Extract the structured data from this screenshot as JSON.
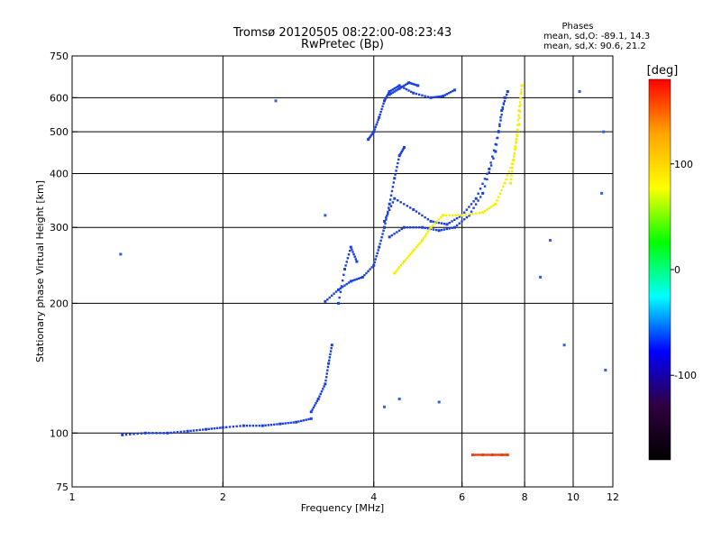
{
  "chart_data": {
    "type": "scatter",
    "title": "Tromsø 20120505 08:22:00-08:23:43",
    "subtitle": "RwPretec (Bp)",
    "phases_title": "Phases",
    "phases_line1": "mean, sd,O: -89.1, 14.3",
    "phases_line2": "mean, sd,X:  90.6, 21.2",
    "xlabel": "Frequency [MHz]",
    "ylabel": "Stationary phase Virtual Height [km]",
    "xscale": "log",
    "yscale": "log",
    "xlim": [
      1,
      12
    ],
    "ylim": [
      75,
      750
    ],
    "xticks": [
      1,
      2,
      4,
      6,
      8,
      10,
      12
    ],
    "yticks": [
      75,
      100,
      200,
      300,
      400,
      500,
      600,
      750
    ],
    "x_gridlines": [
      2,
      4,
      6,
      8,
      10
    ],
    "y_gridlines": [
      100,
      200,
      300,
      400,
      500,
      600
    ],
    "colorbar": {
      "label": "[deg]",
      "range": [
        -180,
        180
      ],
      "ticks": [
        100,
        0,
        -100
      ],
      "colors": [
        "#ff0000",
        "#ffa500",
        "#ffff00",
        "#00ff00",
        "#00ffff",
        "#0000ff",
        "#300040",
        "#000000"
      ]
    },
    "series": [
      {
        "role": "o-mode traces (phase ~ -90 deg)",
        "color": "#1a3fe0",
        "traces": [
          {
            "x": [
              1.26,
              1.4,
              1.55,
              1.7,
              1.85,
              2.0,
              2.2,
              2.4,
              2.6,
              2.8,
              3.0
            ],
            "y": [
              99,
              100,
              100,
              101,
              102,
              103,
              104,
              104,
              105,
              106,
              108
            ]
          },
          {
            "x": [
              3.0,
              3.1,
              3.2,
              3.25,
              3.3
            ],
            "y": [
              112,
              120,
              130,
              145,
              160
            ]
          },
          {
            "x": [
              3.2,
              3.4,
              3.6,
              3.8,
              4.0,
              4.1,
              4.2
            ],
            "y": [
              202,
              215,
              225,
              230,
              245,
              270,
              300
            ]
          },
          {
            "x": [
              3.4,
              3.5,
              3.6,
              3.7
            ],
            "y": [
              200,
              240,
              270,
              250
            ]
          },
          {
            "x": [
              4.2,
              4.3,
              4.4,
              4.5,
              4.6
            ],
            "y": [
              300,
              340,
              390,
              440,
              460
            ]
          },
          {
            "x": [
              4.3,
              4.6,
              5.0,
              5.4,
              5.8,
              6.2,
              6.6,
              7.0,
              7.2,
              7.4
            ],
            "y": [
              285,
              300,
              300,
              295,
              300,
              320,
              360,
              450,
              560,
              620
            ]
          },
          {
            "x": [
              4.2,
              4.4,
              4.8,
              5.2,
              5.6,
              6.0,
              6.4,
              6.8,
              7.1,
              7.3
            ],
            "y": [
              310,
              350,
              330,
              310,
              305,
              320,
              350,
              410,
              500,
              600
            ]
          },
          {
            "x": [
              3.9,
              4.0,
              4.1,
              4.2,
              4.3,
              4.5,
              4.8,
              5.2,
              5.5,
              5.8
            ],
            "y": [
              480,
              500,
              540,
              590,
              620,
              640,
              615,
              600,
              605,
              625
            ]
          },
          {
            "x": [
              4.3,
              4.5,
              4.7,
              4.9
            ],
            "y": [
              610,
              630,
              650,
              640
            ]
          }
        ]
      },
      {
        "role": "x-mode traces (phase ~ +90 deg)",
        "color": "#f2f000",
        "traces": [
          {
            "x": [
              4.4,
              4.6,
              4.8,
              5.0,
              5.2,
              5.5,
              6.0,
              6.6,
              7.0,
              7.3,
              7.6,
              7.8,
              7.9
            ],
            "y": [
              235,
              250,
              265,
              280,
              300,
              320,
              320,
              325,
              340,
              380,
              430,
              520,
              640
            ]
          },
          {
            "x": [
              7.5,
              7.6,
              7.7,
              7.8,
              7.9
            ],
            "y": [
              380,
              430,
              480,
              560,
              640
            ]
          }
        ]
      },
      {
        "role": "low-frequency echoes near 90 km (phase ~ +150 deg)",
        "color": "#f04010",
        "traces": [
          {
            "x": [
              6.3,
              6.6,
              6.9,
              7.2,
              7.4
            ],
            "y": [
              89,
              89,
              89,
              89,
              89
            ]
          }
        ]
      },
      {
        "role": "scattered points",
        "color": "#3060e0",
        "traces": [
          {
            "x": [
              1.25,
              2.55,
              3.2,
              4.2,
              4.5,
              5.4,
              8.6,
              9.0,
              9.6,
              10.3,
              11.4,
              11.5,
              11.6
            ],
            "y": [
              260,
              590,
              320,
              115,
              120,
              118,
              230,
              280,
              160,
              620,
              360,
              500,
              140
            ]
          }
        ]
      }
    ]
  }
}
